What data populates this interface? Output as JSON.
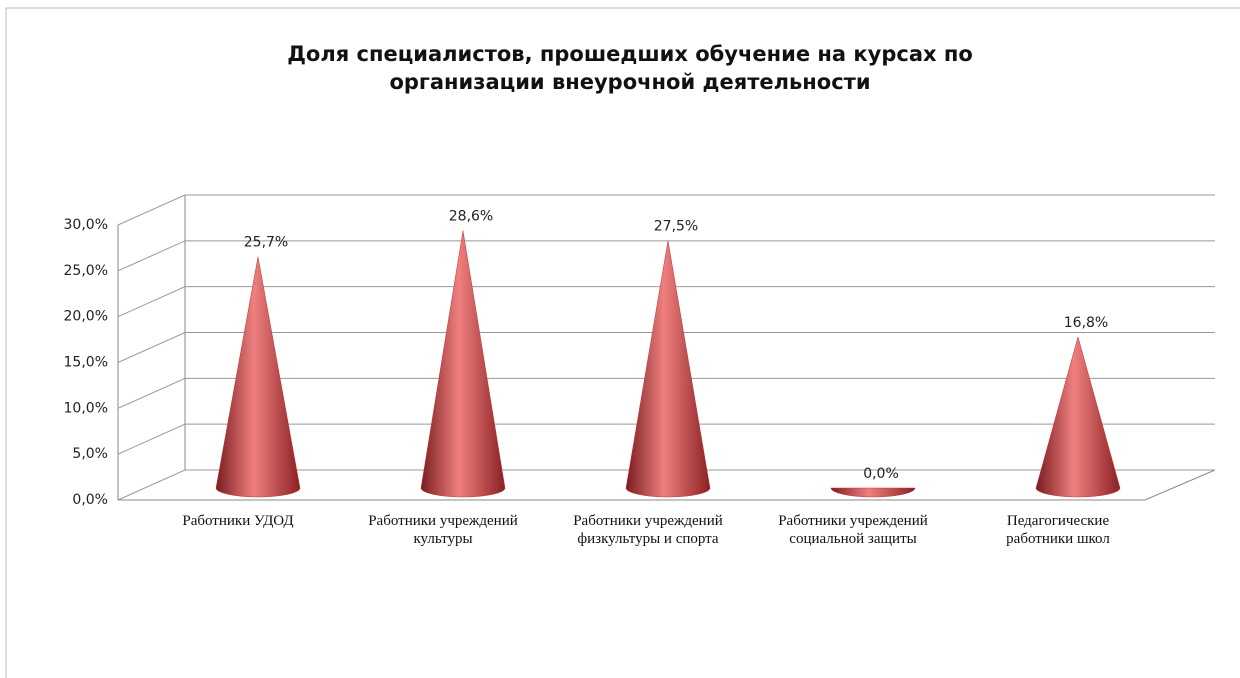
{
  "chart_data": {
    "type": "cone",
    "title": "Доля специалистов, прошедших обучение на курсах по организации внеурочной деятельности",
    "categories": [
      "Работники УДОД",
      "Работники учреждений культуры",
      "Работники учреждений физкультуры и спорта",
      "Работники учреждений социальной защиты",
      "Педагогические работники школ"
    ],
    "values": [
      25.7,
      28.6,
      27.5,
      0.0,
      16.8
    ],
    "value_labels": [
      "25,7%",
      "28,6%",
      "27,5%",
      "0,0%",
      "16,8%"
    ],
    "color": "#c0393b",
    "ylim": [
      0,
      30
    ],
    "yticks": [
      {
        "value": 0,
        "label": "0,0%"
      },
      {
        "value": 5,
        "label": "5,0%"
      },
      {
        "value": 10,
        "label": "10,0%"
      },
      {
        "value": 15,
        "label": "15,0%"
      },
      {
        "value": 20,
        "label": "20,0%"
      },
      {
        "value": 25,
        "label": "25,0%"
      },
      {
        "value": 30,
        "label": "30,0%"
      }
    ],
    "grid": true
  }
}
